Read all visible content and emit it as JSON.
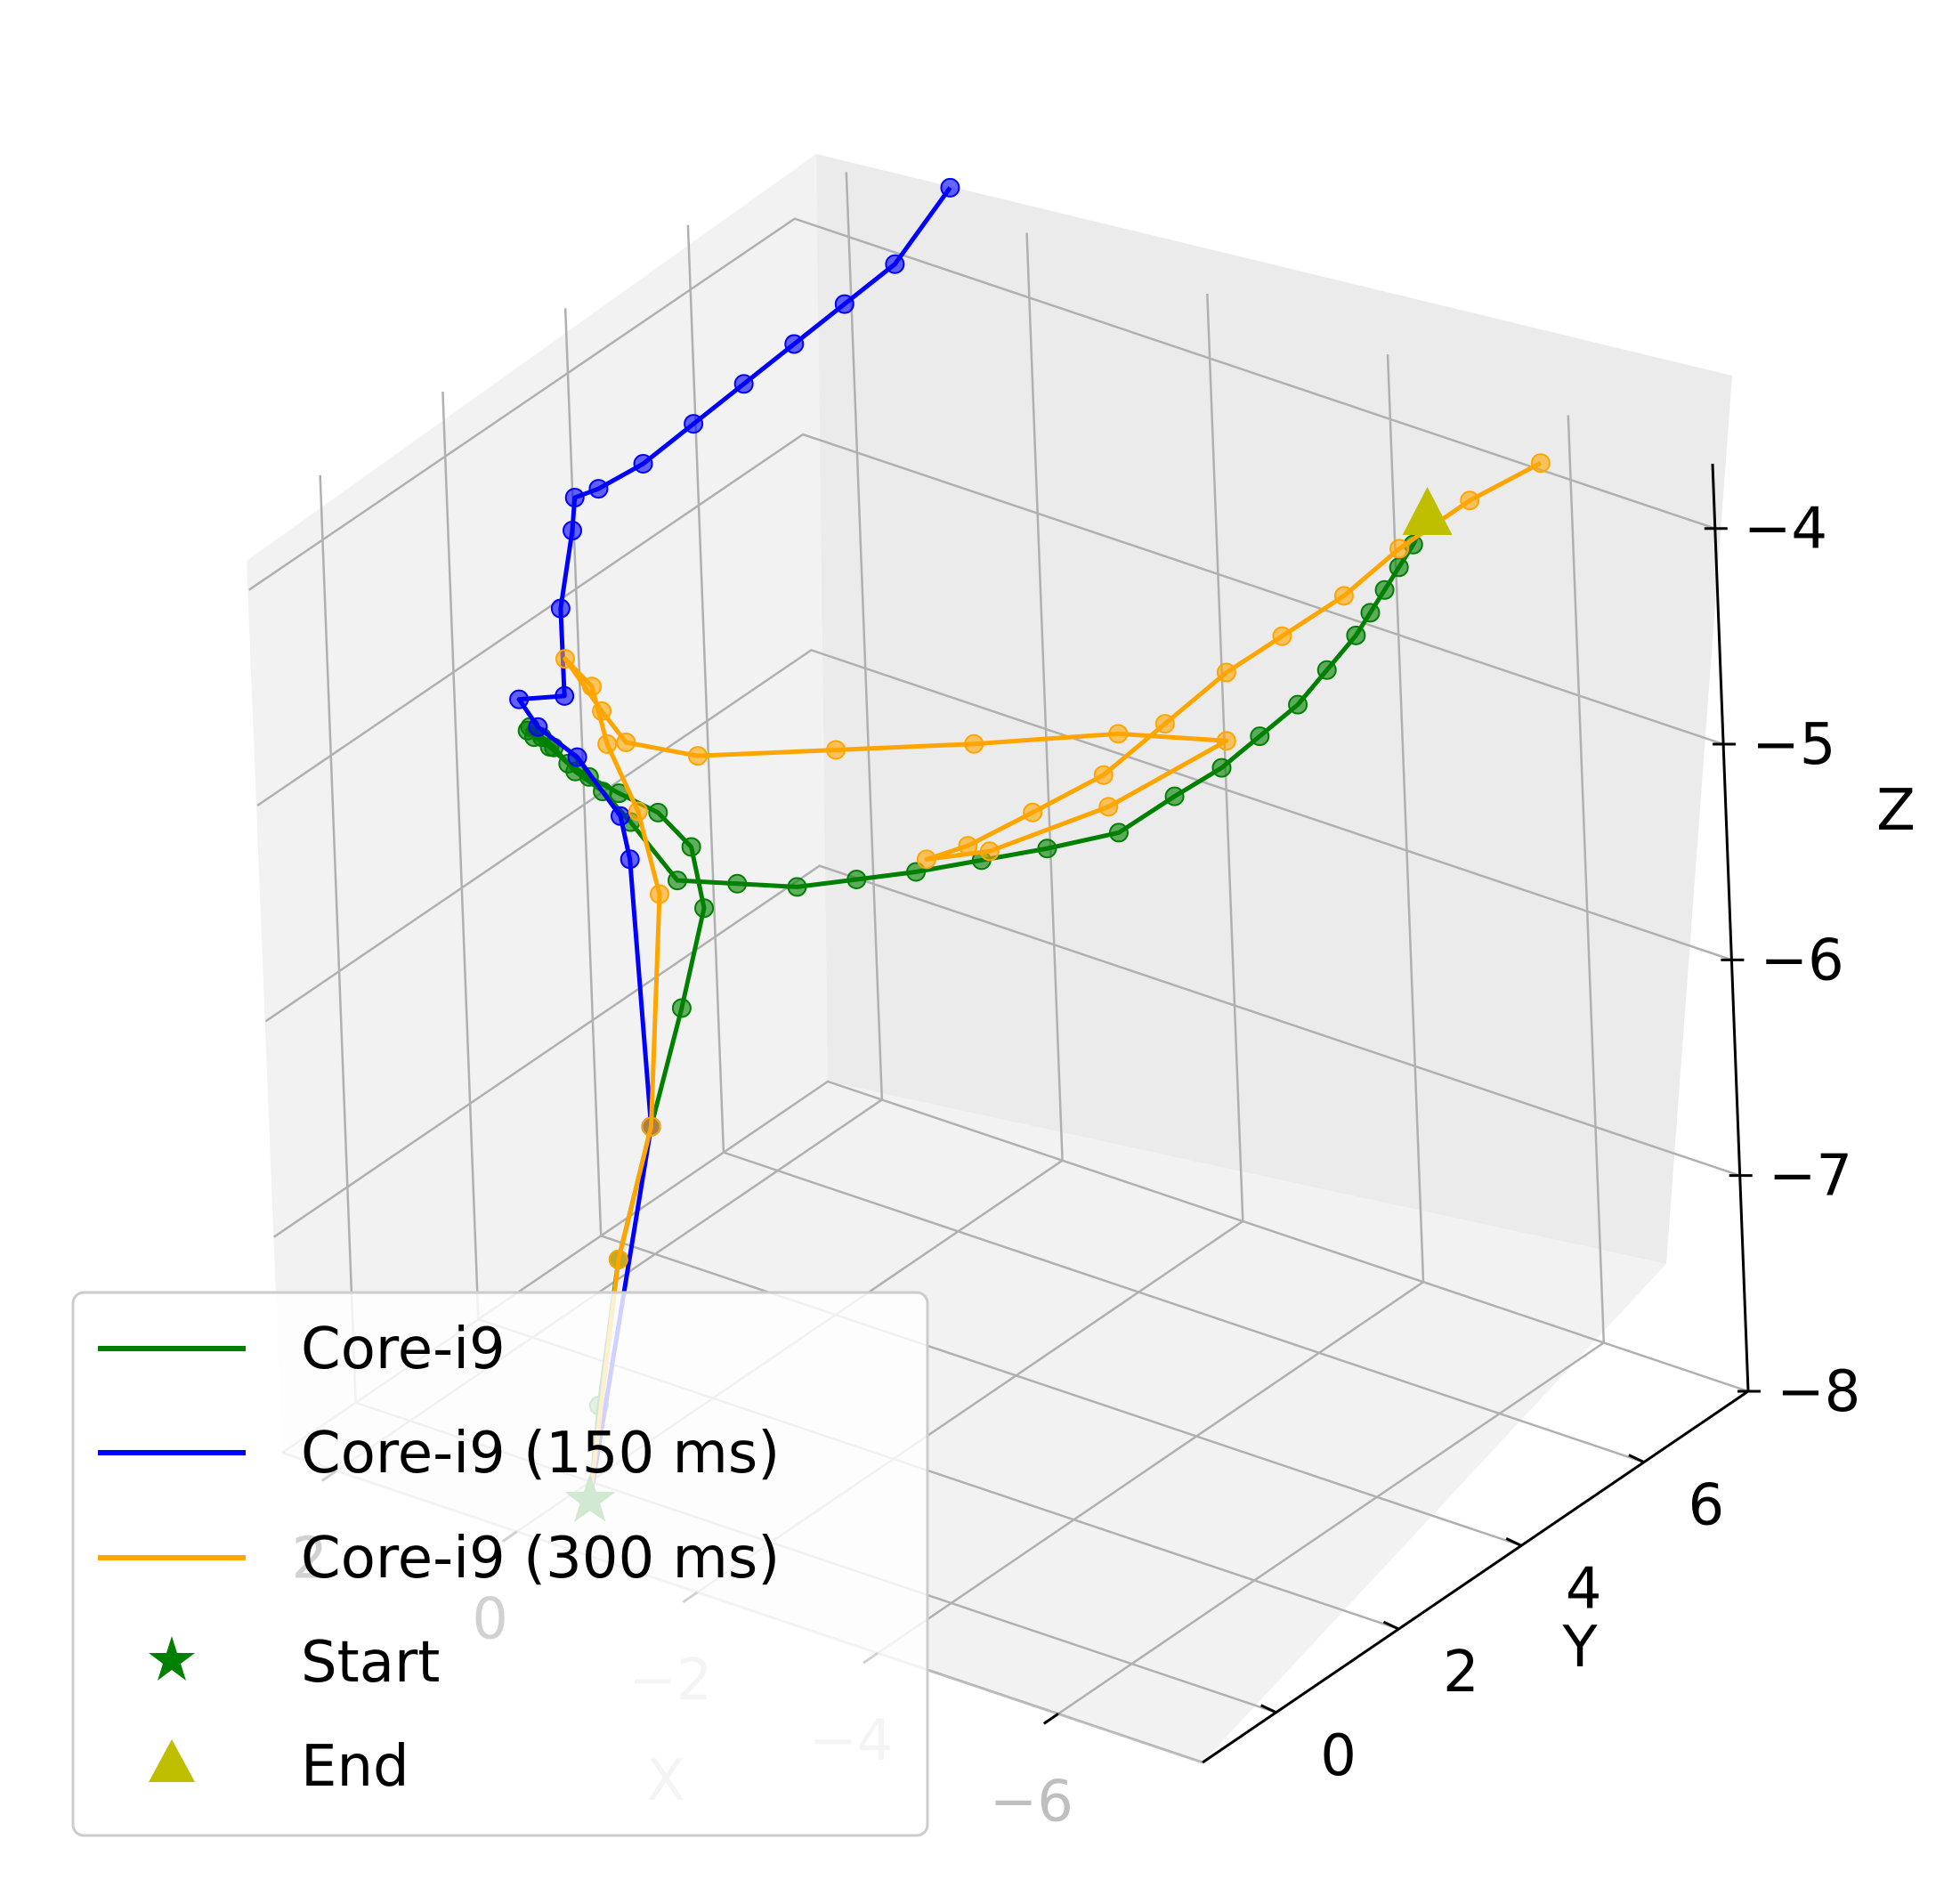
{
  "chart_data": {
    "type": "line3d",
    "xlabel": "X",
    "ylabel": "Y",
    "zlabel": "Z",
    "x_ticks": [
      "−6",
      "−4",
      "−2",
      "0",
      "2"
    ],
    "y_ticks": [
      "0",
      "2",
      "4",
      "6"
    ],
    "z_ticks": [
      "−4",
      "−5",
      "−6",
      "−7",
      "−8"
    ],
    "xlim": [
      -7.6,
      2.6
    ],
    "ylim": [
      -1.2,
      7.7
    ],
    "zlim": [
      -8.0,
      -3.7
    ],
    "grid": true,
    "legend_position": "lower-left",
    "series": [
      {
        "name": "Core-i9",
        "color": "#008000",
        "points": [
          [
            -0.2,
            -0.3,
            -8.0
          ],
          [
            -0.2,
            -0.1,
            -7.6
          ],
          [
            -0.2,
            0.3,
            -7.0
          ],
          [
            -0.2,
            0.9,
            -6.5
          ],
          [
            -0.1,
            1.6,
            -6.1
          ],
          [
            0.1,
            2.3,
            -5.8
          ],
          [
            0.5,
            2.7,
            -5.65
          ],
          [
            1.0,
            2.9,
            -5.6
          ],
          [
            1.5,
            3.0,
            -5.6
          ],
          [
            1.9,
            3.1,
            -5.6
          ],
          [
            2.2,
            3.2,
            -5.6
          ],
          [
            2.4,
            3.2,
            -5.55
          ],
          [
            2.5,
            3.1,
            -5.5
          ],
          [
            2.5,
            3.0,
            -5.45
          ],
          [
            2.4,
            2.9,
            -5.4
          ],
          [
            2.2,
            2.8,
            -5.4
          ],
          [
            2.0,
            2.7,
            -5.4
          ],
          [
            1.7,
            2.6,
            -5.45
          ],
          [
            1.4,
            2.6,
            -5.5
          ],
          [
            1.1,
            2.6,
            -5.6
          ],
          [
            0.6,
            2.6,
            -5.8
          ],
          [
            0.0,
            2.7,
            -5.75
          ],
          [
            -0.6,
            2.8,
            -5.7
          ],
          [
            -1.2,
            2.9,
            -5.6
          ],
          [
            -1.8,
            3.0,
            -5.5
          ],
          [
            -2.4,
            3.2,
            -5.4
          ],
          [
            -3.0,
            3.4,
            -5.3
          ],
          [
            -3.6,
            3.7,
            -5.2
          ],
          [
            -4.1,
            3.9,
            -5.0
          ],
          [
            -4.5,
            4.1,
            -4.85
          ],
          [
            -4.8,
            4.3,
            -4.7
          ],
          [
            -5.1,
            4.5,
            -4.55
          ],
          [
            -5.3,
            4.7,
            -4.4
          ],
          [
            -5.5,
            4.9,
            -4.25
          ],
          [
            -5.6,
            5.0,
            -4.15
          ],
          [
            -5.7,
            5.1,
            -4.05
          ],
          [
            -5.8,
            5.2,
            -3.95
          ],
          [
            -5.9,
            5.3,
            -3.85
          ],
          [
            -6.0,
            5.4,
            -3.72
          ]
        ]
      },
      {
        "name": "Core-i9 (150 ms)",
        "color": "#0000ff",
        "points": [
          [
            -0.2,
            -0.3,
            -8.0
          ],
          [
            -0.2,
            0.9,
            -6.5
          ],
          [
            0.7,
            2.0,
            -5.6
          ],
          [
            1.0,
            2.3,
            -5.5
          ],
          [
            1.6,
            2.5,
            -5.35
          ],
          [
            2.1,
            2.6,
            -5.3
          ],
          [
            2.3,
            2.6,
            -5.2
          ],
          [
            2.0,
            2.9,
            -5.2
          ],
          [
            2.5,
            3.6,
            -5.0
          ],
          [
            2.9,
            4.4,
            -4.85
          ],
          [
            3.0,
            4.6,
            -4.75
          ],
          [
            2.8,
            4.7,
            -4.7
          ],
          [
            2.5,
            5.0,
            -4.6
          ],
          [
            2.2,
            5.4,
            -4.45
          ],
          [
            1.9,
            5.8,
            -4.3
          ],
          [
            1.6,
            6.2,
            -4.15
          ],
          [
            1.3,
            6.6,
            -4.0
          ],
          [
            1.0,
            7.0,
            -3.85
          ],
          [
            0.7,
            7.5,
            -3.55
          ]
        ]
      },
      {
        "name": "Core-i9 (300 ms)",
        "color": "#ffa500",
        "points": [
          [
            -0.2,
            -0.3,
            -8.0
          ],
          [
            -0.2,
            0.3,
            -7.0
          ],
          [
            -0.2,
            0.9,
            -6.5
          ],
          [
            0.1,
            1.6,
            -5.6
          ],
          [
            0.8,
            2.3,
            -5.45
          ],
          [
            1.4,
            2.7,
            -5.3
          ],
          [
            1.9,
            3.2,
            -5.2
          ],
          [
            2.4,
            3.5,
            -5.2
          ],
          [
            1.8,
            3.2,
            -5.3
          ],
          [
            1.4,
            3.0,
            -5.35
          ],
          [
            0.6,
            3.0,
            -5.3
          ],
          [
            -0.6,
            3.5,
            -5.2
          ],
          [
            -1.8,
            4.0,
            -5.1
          ],
          [
            -3.0,
            4.6,
            -5.0
          ],
          [
            -4.0,
            4.9,
            -4.95
          ],
          [
            -3.0,
            4.4,
            -5.3
          ],
          [
            -2.0,
            3.9,
            -5.55
          ],
          [
            -1.5,
            3.6,
            -5.6
          ],
          [
            -1.9,
            3.7,
            -5.5
          ],
          [
            -2.5,
            3.9,
            -5.3
          ],
          [
            -3.1,
            4.2,
            -5.1
          ],
          [
            -3.6,
            4.5,
            -4.85
          ],
          [
            -4.1,
            4.8,
            -4.6
          ],
          [
            -4.6,
            5.0,
            -4.4
          ],
          [
            -5.1,
            5.3,
            -4.2
          ],
          [
            -5.6,
            5.5,
            -3.95
          ],
          [
            -6.2,
            5.8,
            -3.7
          ],
          [
            -6.8,
            6.1,
            -3.5
          ]
        ]
      }
    ],
    "markers": [
      {
        "name": "Start",
        "shape": "star",
        "color": "#008000",
        "point": [
          -0.2,
          -0.3,
          -8.0
        ]
      },
      {
        "name": "End",
        "shape": "triangle",
        "color": "#bfbf00",
        "point": [
          -6.0,
          5.4,
          -3.72
        ]
      }
    ],
    "legend": [
      {
        "label": "Core-i9",
        "kind": "line",
        "color": "#008000"
      },
      {
        "label": "Core-i9 (150 ms)",
        "kind": "line",
        "color": "#0000ff"
      },
      {
        "label": "Core-i9 (300 ms)",
        "kind": "line",
        "color": "#ffa500"
      },
      {
        "label": "Start",
        "kind": "star",
        "color": "#008000"
      },
      {
        "label": "End",
        "kind": "triangle",
        "color": "#bfbf00"
      }
    ]
  }
}
